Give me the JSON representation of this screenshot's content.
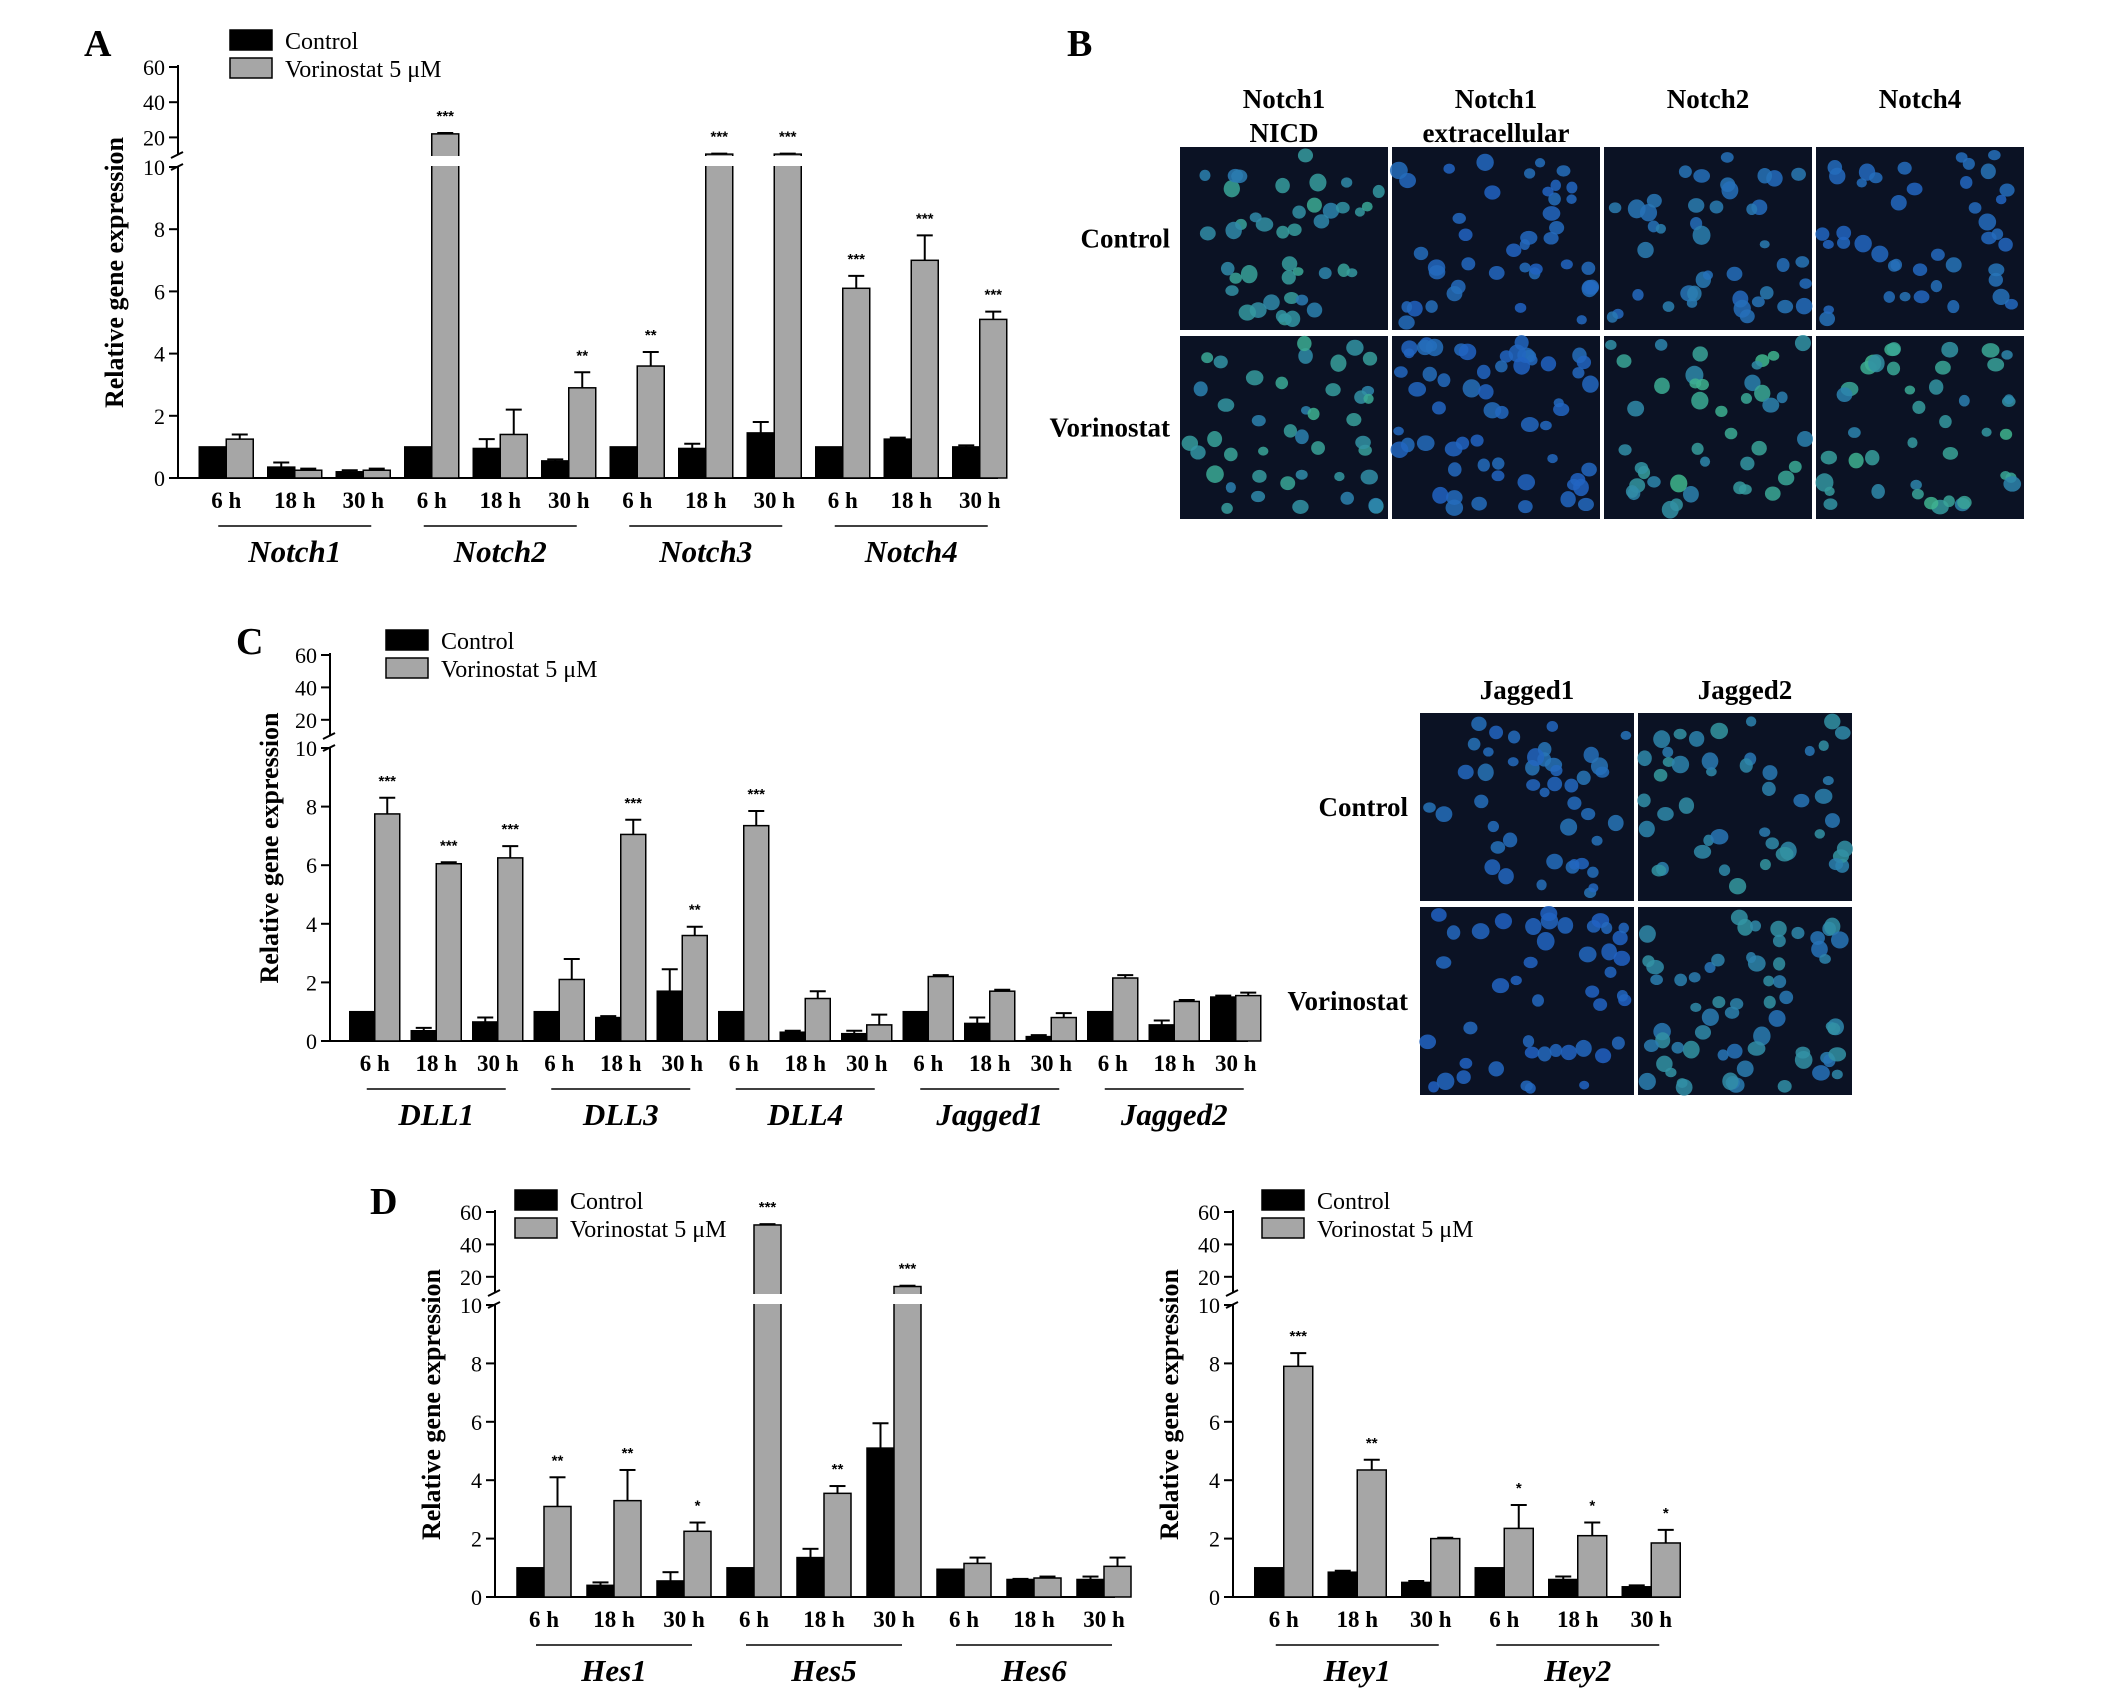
{
  "colors": {
    "control": "#000000",
    "vorinostat": "#a6a6a6",
    "cell_bg": "#0b1224",
    "nucleus_blue": "#2f64c8",
    "nucleus_green": "#3fbf9a"
  },
  "legend": {
    "control": "Control",
    "vorinostat": "Vorinostat 5 μM"
  },
  "chart_data": [
    {
      "panel": "A",
      "type": "bar",
      "ylabel": "Relative gene expression",
      "ylim_lower": [
        0,
        10
      ],
      "ylim_upper": [
        10,
        60
      ],
      "yticks_lower": [
        0,
        2,
        4,
        6,
        8,
        10
      ],
      "yticks_upper": [
        20,
        40,
        60
      ],
      "genes": [
        {
          "name": "Notch1",
          "times": [
            "6 h",
            "18 h",
            "30 h"
          ],
          "control": [
            1.0,
            0.35,
            0.2
          ],
          "control_err": [
            0,
            0.15,
            0.05
          ],
          "vorinostat": [
            1.25,
            0.25,
            0.25
          ],
          "vorinostat_err": [
            0.15,
            0.05,
            0.05
          ],
          "sig": [
            "",
            "",
            ""
          ]
        },
        {
          "name": "Notch2",
          "times": [
            "6 h",
            "18 h",
            "30 h"
          ],
          "control": [
            1.0,
            0.95,
            0.55
          ],
          "control_err": [
            0,
            0.3,
            0.05
          ],
          "vorinostat": [
            22,
            1.4,
            2.9
          ],
          "vorinostat_err": [
            0.5,
            0.8,
            0.5
          ],
          "sig": [
            "***",
            "",
            "**"
          ]
        },
        {
          "name": "Notch3",
          "times": [
            "6 h",
            "18 h",
            "30 h"
          ],
          "control": [
            1.0,
            0.95,
            1.45
          ],
          "control_err": [
            0,
            0.15,
            0.35
          ],
          "vorinostat": [
            3.6,
            10.5,
            10.5
          ],
          "vorinostat_err": [
            0.45,
            0.3,
            0.3
          ],
          "sig": [
            "**",
            "***",
            "***"
          ]
        },
        {
          "name": "Notch4",
          "times": [
            "6 h",
            "18 h",
            "30 h"
          ],
          "control": [
            1.0,
            1.25,
            1.0
          ],
          "control_err": [
            0,
            0.05,
            0.05
          ],
          "vorinostat": [
            6.1,
            7.0,
            5.1
          ],
          "vorinostat_err": [
            0.4,
            0.8,
            0.25
          ],
          "sig": [
            "***",
            "***",
            "***"
          ]
        }
      ]
    },
    {
      "panel": "C",
      "type": "bar",
      "ylabel": "Relative gene expression",
      "ylim_lower": [
        0,
        10
      ],
      "ylim_upper": [
        10,
        60
      ],
      "yticks_lower": [
        0,
        2,
        4,
        6,
        8,
        10
      ],
      "yticks_upper": [
        20,
        40,
        60
      ],
      "genes": [
        {
          "name": "DLL1",
          "times": [
            "6 h",
            "18 h",
            "30 h"
          ],
          "control": [
            1.0,
            0.35,
            0.65
          ],
          "control_err": [
            0,
            0.1,
            0.15
          ],
          "vorinostat": [
            7.75,
            6.05,
            6.25
          ],
          "vorinostat_err": [
            0.55,
            0.05,
            0.4
          ],
          "sig": [
            "***",
            "***",
            "***"
          ]
        },
        {
          "name": "DLL3",
          "times": [
            "6 h",
            "18 h",
            "30 h"
          ],
          "control": [
            1.0,
            0.8,
            1.7
          ],
          "control_err": [
            0,
            0.05,
            0.75
          ],
          "vorinostat": [
            2.1,
            7.05,
            3.6
          ],
          "vorinostat_err": [
            0.7,
            0.5,
            0.3
          ],
          "sig": [
            "",
            "***",
            "**"
          ]
        },
        {
          "name": "DLL4",
          "times": [
            "6 h",
            "18 h",
            "30 h"
          ],
          "control": [
            1.0,
            0.3,
            0.25
          ],
          "control_err": [
            0,
            0.05,
            0.1
          ],
          "vorinostat": [
            7.35,
            1.45,
            0.55
          ],
          "vorinostat_err": [
            0.5,
            0.25,
            0.35
          ],
          "sig": [
            "***",
            "",
            ""
          ]
        },
        {
          "name": "Jagged1",
          "times": [
            "6 h",
            "18 h",
            "30 h"
          ],
          "control": [
            1.0,
            0.6,
            0.15
          ],
          "control_err": [
            0,
            0.2,
            0.05
          ],
          "vorinostat": [
            2.2,
            1.7,
            0.8
          ],
          "vorinostat_err": [
            0.05,
            0.05,
            0.15
          ],
          "sig": [
            "",
            "",
            ""
          ]
        },
        {
          "name": "Jagged2",
          "times": [
            "6 h",
            "18 h",
            "30 h"
          ],
          "control": [
            1.0,
            0.55,
            1.5
          ],
          "control_err": [
            0,
            0.15,
            0.05
          ],
          "vorinostat": [
            2.15,
            1.35,
            1.55
          ],
          "vorinostat_err": [
            0.1,
            0.05,
            0.1
          ],
          "sig": [
            "",
            "",
            ""
          ]
        }
      ]
    },
    {
      "panel": "D",
      "type": "bar",
      "ylabel": "Relative gene expression",
      "ylim_lower": [
        0,
        10
      ],
      "ylim_upper": [
        10,
        60
      ],
      "yticks_lower": [
        0,
        2,
        4,
        6,
        8,
        10
      ],
      "yticks_upper": [
        20,
        40,
        60
      ],
      "genes": [
        {
          "name": "Hes1",
          "times": [
            "6 h",
            "18 h",
            "30 h"
          ],
          "control": [
            1.0,
            0.4,
            0.55
          ],
          "control_err": [
            0,
            0.1,
            0.3
          ],
          "vorinostat": [
            3.1,
            3.3,
            2.25
          ],
          "vorinostat_err": [
            1.0,
            1.05,
            0.3
          ],
          "sig": [
            "**",
            "**",
            "*"
          ]
        },
        {
          "name": "Hes5",
          "times": [
            "6 h",
            "18 h",
            "30 h"
          ],
          "control": [
            1.0,
            1.35,
            5.1
          ],
          "control_err": [
            0,
            0.3,
            0.85
          ],
          "vorinostat": [
            52,
            3.55,
            14
          ],
          "vorinostat_err": [
            0.5,
            0.25,
            0.5
          ],
          "sig": [
            "***",
            "**",
            "***"
          ]
        },
        {
          "name": "Hes6",
          "times": [
            "6 h",
            "18 h",
            "30 h"
          ],
          "control": [
            0.95,
            0.6,
            0.6
          ],
          "control_err": [
            0,
            0.02,
            0.1
          ],
          "vorinostat": [
            1.15,
            0.65,
            1.05
          ],
          "vorinostat_err": [
            0.2,
            0.05,
            0.3
          ],
          "sig": [
            "",
            "",
            ""
          ]
        }
      ]
    },
    {
      "panel": "D2",
      "type": "bar",
      "ylabel": "Relative gene expression",
      "ylim_lower": [
        0,
        10
      ],
      "ylim_upper": [
        10,
        60
      ],
      "yticks_lower": [
        0,
        2,
        4,
        6,
        8,
        10
      ],
      "yticks_upper": [
        20,
        40,
        60
      ],
      "genes": [
        {
          "name": "Hey1",
          "times": [
            "6 h",
            "18 h",
            "30 h"
          ],
          "control": [
            1.0,
            0.85,
            0.5
          ],
          "control_err": [
            0,
            0.05,
            0.05
          ],
          "vorinostat": [
            7.9,
            4.35,
            2.0
          ],
          "vorinostat_err": [
            0.45,
            0.35,
            0.03
          ],
          "sig": [
            "***",
            "**",
            ""
          ]
        },
        {
          "name": "Hey2",
          "times": [
            "6 h",
            "18 h",
            "30 h"
          ],
          "control": [
            1.0,
            0.6,
            0.35
          ],
          "control_err": [
            0,
            0.1,
            0.05
          ],
          "vorinostat": [
            2.35,
            2.1,
            1.85
          ],
          "vorinostat_err": [
            0.8,
            0.45,
            0.45
          ],
          "sig": [
            "*",
            "*",
            "*"
          ]
        }
      ]
    }
  ],
  "micrographs": [
    {
      "panel": "B",
      "columns": [
        [
          "Notch1",
          "NICD"
        ],
        [
          "Notch1",
          "extracellular"
        ],
        [
          "Notch2"
        ],
        [
          "Notch4"
        ]
      ],
      "rows": [
        "Control",
        "Vorinostat"
      ]
    },
    {
      "panel": "C-img",
      "columns": [
        [
          "Jagged1"
        ],
        [
          "Jagged2"
        ]
      ],
      "rows": [
        "Control",
        "Vorinostat"
      ]
    }
  ],
  "panel_labels": [
    "A",
    "B",
    "C",
    "D"
  ]
}
